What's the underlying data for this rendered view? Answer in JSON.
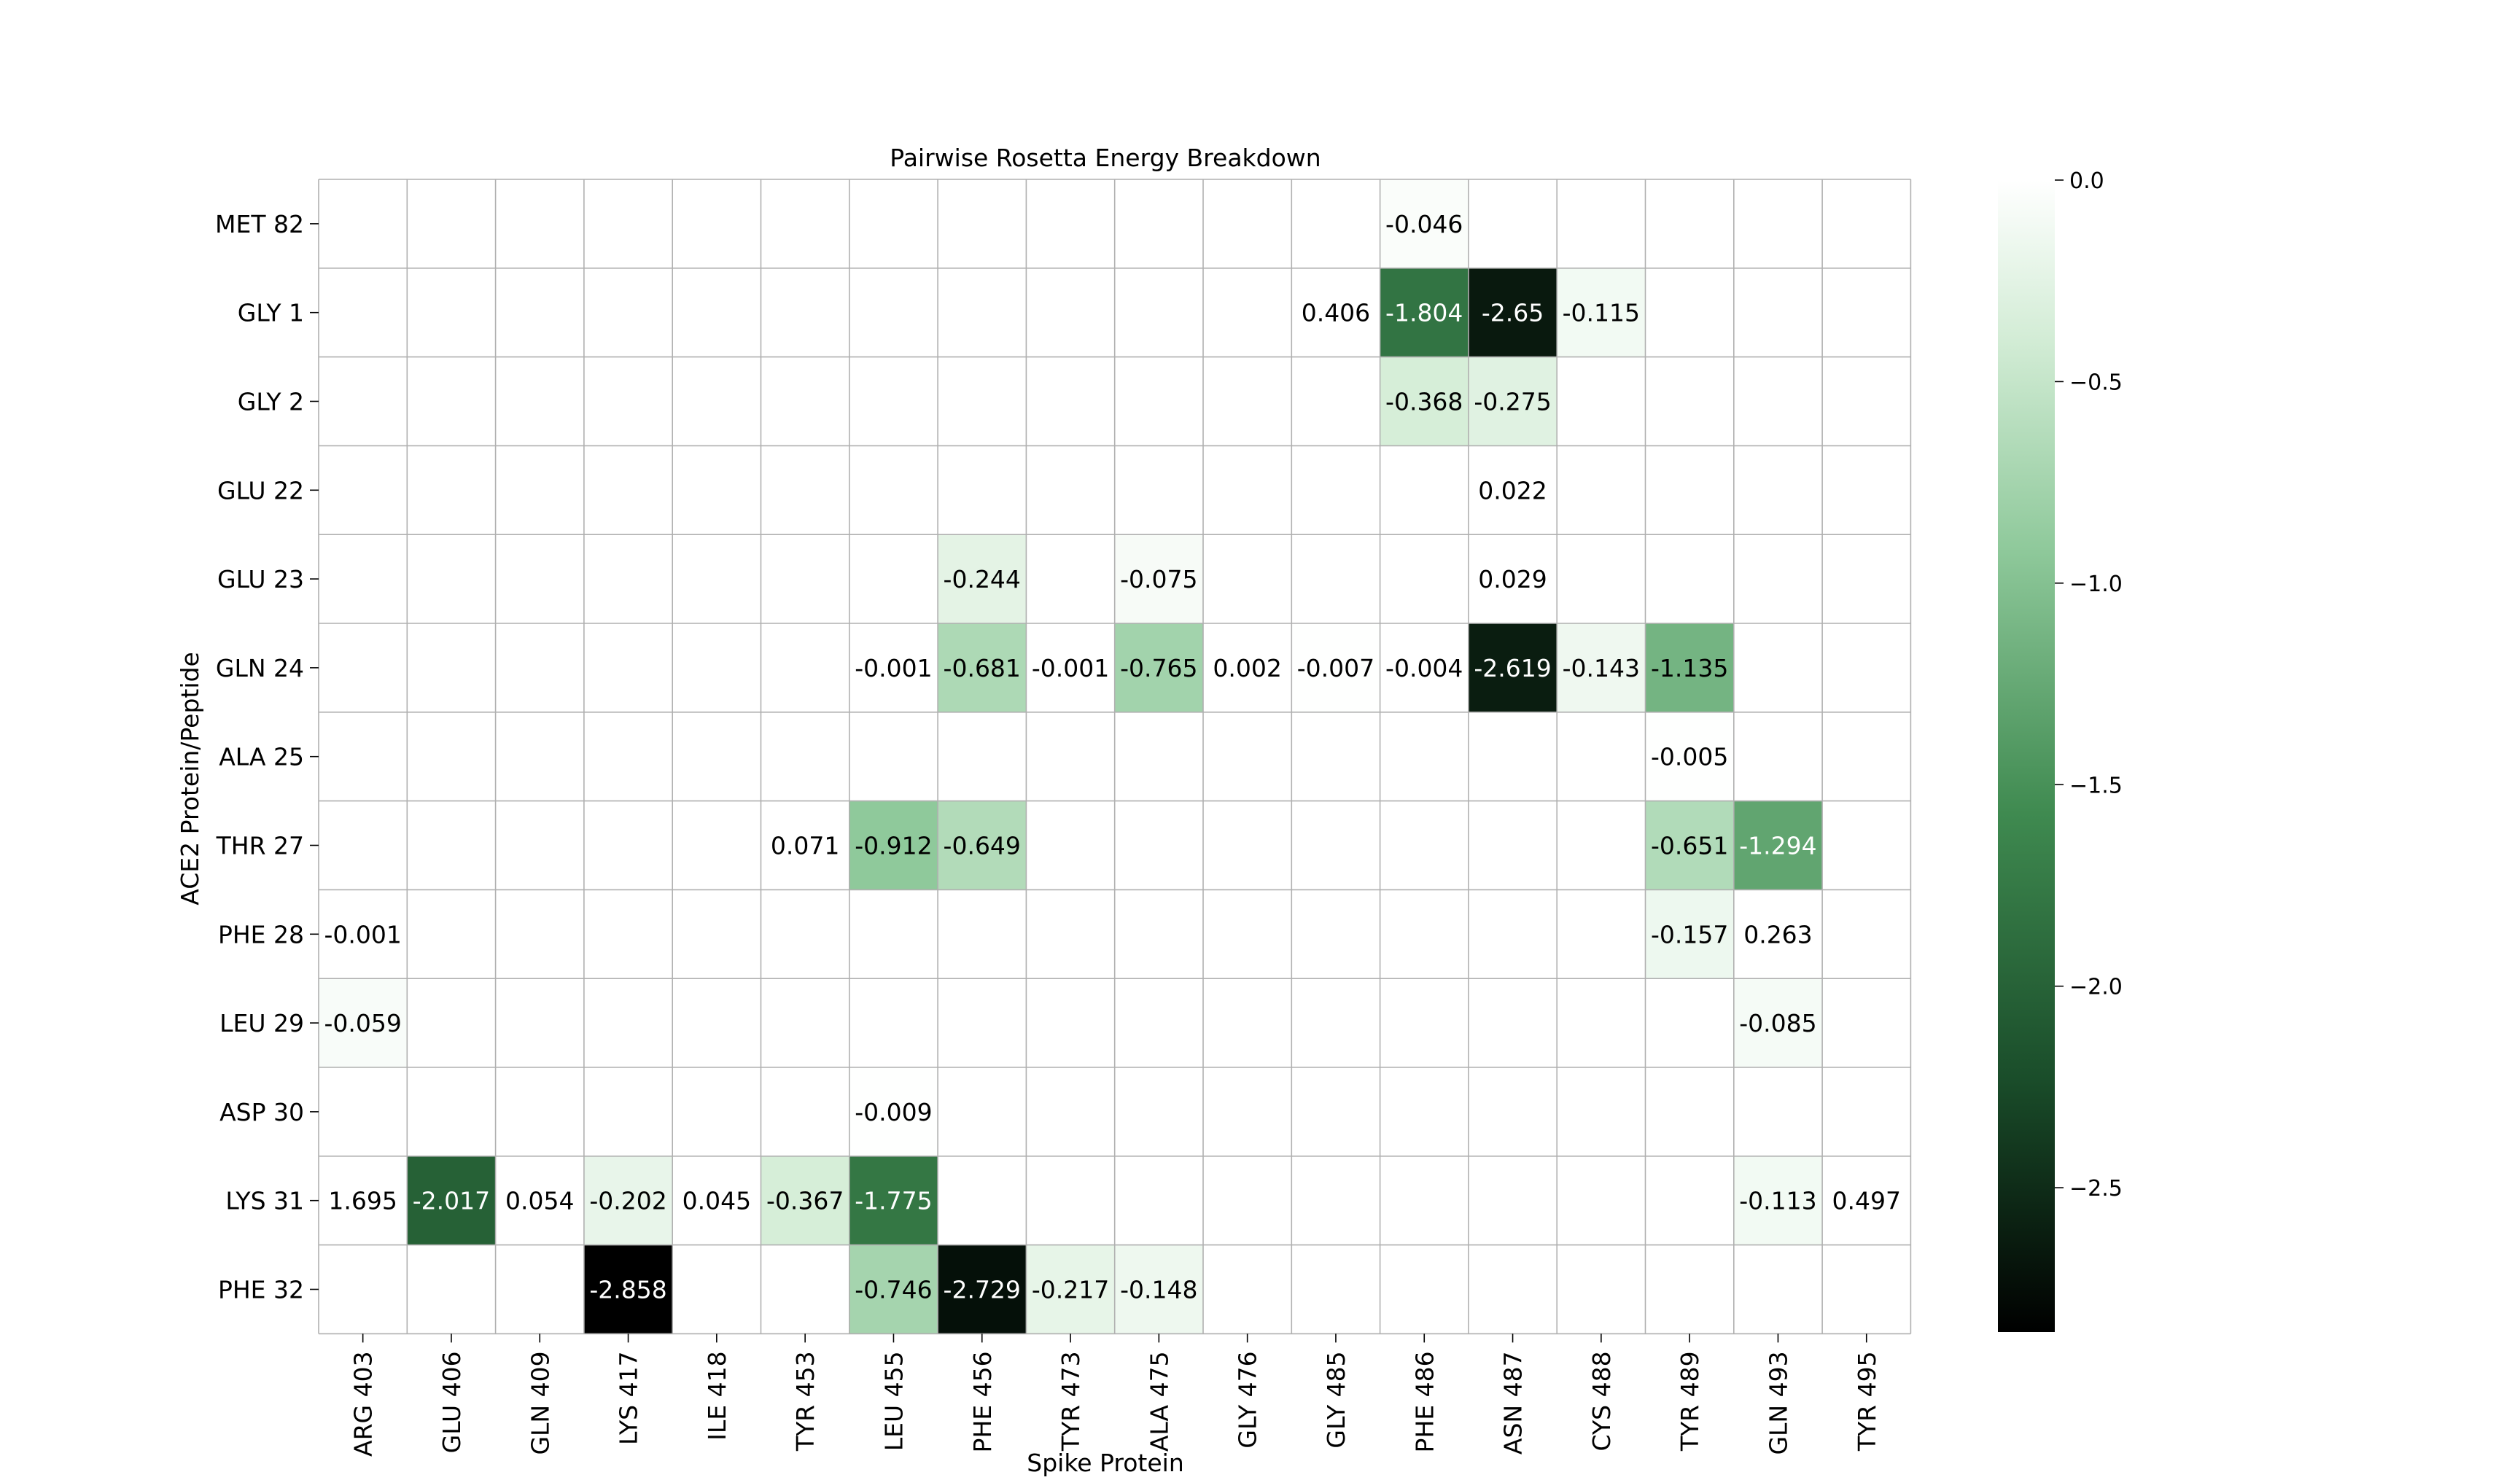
{
  "chart_data": {
    "type": "heatmap",
    "title": "Pairwise Rosetta Energy Breakdown",
    "xlabel": "Spike Protein",
    "ylabel": "ACE2 Protein/Peptide",
    "x_categories": [
      "ARG 403",
      "GLU 406",
      "GLN 409",
      "LYS 417",
      "ILE 418",
      "TYR 453",
      "LEU 455",
      "PHE 456",
      "TYR 473",
      "ALA 475",
      "GLY 476",
      "GLY 485",
      "PHE 486",
      "ASN 487",
      "CYS 488",
      "TYR 489",
      "GLN 493",
      "TYR 495"
    ],
    "y_categories": [
      "MET 82",
      "GLY 1",
      "GLY 2",
      "GLU 22",
      "GLU 23",
      "GLN 24",
      "ALA 25",
      "THR 27",
      "PHE 28",
      "LEU 29",
      "ASP 30",
      "LYS 31",
      "PHE 32"
    ],
    "cells": [
      {
        "x": "PHE 486",
        "y": "MET 82",
        "value": -0.046,
        "label": "-0.046"
      },
      {
        "x": "GLY 485",
        "y": "GLY 1",
        "value": 0.406,
        "label": "0.406"
      },
      {
        "x": "PHE 486",
        "y": "GLY 1",
        "value": -1.804,
        "label": "-1.804"
      },
      {
        "x": "ASN 487",
        "y": "GLY 1",
        "value": -2.65,
        "label": "-2.65"
      },
      {
        "x": "CYS 488",
        "y": "GLY 1",
        "value": -0.115,
        "label": "-0.115"
      },
      {
        "x": "PHE 486",
        "y": "GLY 2",
        "value": -0.368,
        "label": "-0.368"
      },
      {
        "x": "ASN 487",
        "y": "GLY 2",
        "value": -0.275,
        "label": "-0.275"
      },
      {
        "x": "ASN 487",
        "y": "GLU 22",
        "value": 0.022,
        "label": "0.022"
      },
      {
        "x": "PHE 456",
        "y": "GLU 23",
        "value": -0.244,
        "label": "-0.244"
      },
      {
        "x": "ALA 475",
        "y": "GLU 23",
        "value": -0.075,
        "label": "-0.075"
      },
      {
        "x": "ASN 487",
        "y": "GLU 23",
        "value": 0.029,
        "label": "0.029"
      },
      {
        "x": "LEU 455",
        "y": "GLN 24",
        "value": -0.001,
        "label": "-0.001"
      },
      {
        "x": "PHE 456",
        "y": "GLN 24",
        "value": -0.681,
        "label": "-0.681"
      },
      {
        "x": "TYR 473",
        "y": "GLN 24",
        "value": -0.001,
        "label": "-0.001"
      },
      {
        "x": "ALA 475",
        "y": "GLN 24",
        "value": -0.765,
        "label": "-0.765"
      },
      {
        "x": "GLY 476",
        "y": "GLN 24",
        "value": 0.002,
        "label": "0.002"
      },
      {
        "x": "GLY 485",
        "y": "GLN 24",
        "value": -0.007,
        "label": "-0.007"
      },
      {
        "x": "PHE 486",
        "y": "GLN 24",
        "value": -0.004,
        "label": "-0.004"
      },
      {
        "x": "ASN 487",
        "y": "GLN 24",
        "value": -2.619,
        "label": "-2.619"
      },
      {
        "x": "CYS 488",
        "y": "GLN 24",
        "value": -0.143,
        "label": "-0.143"
      },
      {
        "x": "TYR 489",
        "y": "GLN 24",
        "value": -1.135,
        "label": "-1.135"
      },
      {
        "x": "TYR 489",
        "y": "ALA 25",
        "value": -0.005,
        "label": "-0.005"
      },
      {
        "x": "TYR 453",
        "y": "THR 27",
        "value": 0.071,
        "label": "0.071"
      },
      {
        "x": "LEU 455",
        "y": "THR 27",
        "value": -0.912,
        "label": "-0.912"
      },
      {
        "x": "PHE 456",
        "y": "THR 27",
        "value": -0.649,
        "label": "-0.649"
      },
      {
        "x": "TYR 489",
        "y": "THR 27",
        "value": -0.651,
        "label": "-0.651"
      },
      {
        "x": "GLN 493",
        "y": "THR 27",
        "value": -1.294,
        "label": "-1.294"
      },
      {
        "x": "ARG 403",
        "y": "PHE 28",
        "value": -0.001,
        "label": "-0.001"
      },
      {
        "x": "TYR 489",
        "y": "PHE 28",
        "value": -0.157,
        "label": "-0.157"
      },
      {
        "x": "GLN 493",
        "y": "PHE 28",
        "value": 0.263,
        "label": "0.263"
      },
      {
        "x": "ARG 403",
        "y": "LEU 29",
        "value": -0.059,
        "label": "-0.059"
      },
      {
        "x": "GLN 493",
        "y": "LEU 29",
        "value": -0.085,
        "label": "-0.085"
      },
      {
        "x": "LEU 455",
        "y": "ASP 30",
        "value": -0.009,
        "label": "-0.009"
      },
      {
        "x": "ARG 403",
        "y": "LYS 31",
        "value": 1.695,
        "label": "1.695"
      },
      {
        "x": "GLU 406",
        "y": "LYS 31",
        "value": -2.017,
        "label": "-2.017"
      },
      {
        "x": "GLN 409",
        "y": "LYS 31",
        "value": 0.054,
        "label": "0.054"
      },
      {
        "x": "LYS 417",
        "y": "LYS 31",
        "value": -0.202,
        "label": "-0.202"
      },
      {
        "x": "ILE 418",
        "y": "LYS 31",
        "value": 0.045,
        "label": "0.045"
      },
      {
        "x": "TYR 453",
        "y": "LYS 31",
        "value": -0.367,
        "label": "-0.367"
      },
      {
        "x": "LEU 455",
        "y": "LYS 31",
        "value": -1.775,
        "label": "-1.775"
      },
      {
        "x": "GLN 493",
        "y": "LYS 31",
        "value": -0.113,
        "label": "-0.113"
      },
      {
        "x": "TYR 495",
        "y": "LYS 31",
        "value": 0.497,
        "label": "0.497"
      },
      {
        "x": "LYS 417",
        "y": "PHE 32",
        "value": -2.858,
        "label": "-2.858"
      },
      {
        "x": "LEU 455",
        "y": "PHE 32",
        "value": -0.746,
        "label": "-0.746"
      },
      {
        "x": "PHE 456",
        "y": "PHE 32",
        "value": -2.729,
        "label": "-2.729"
      },
      {
        "x": "TYR 473",
        "y": "PHE 32",
        "value": -0.217,
        "label": "-0.217"
      },
      {
        "x": "ALA 475",
        "y": "PHE 32",
        "value": -0.148,
        "label": "-0.148"
      }
    ],
    "colorbar": {
      "range": [
        -2.858,
        0.0
      ],
      "ticks": [
        0.0,
        -0.5,
        -1.0,
        -1.5,
        -2.0,
        -2.5
      ],
      "tick_labels": [
        "0.0",
        "−0.5",
        "−1.0",
        "−1.5",
        "−2.0",
        "−2.5"
      ],
      "colormap": [
        "#000000",
        "#1a4d2a",
        "#3f8a50",
        "#8fc99b",
        "#d2ecd5",
        "#ffffff"
      ]
    },
    "grid": true
  }
}
